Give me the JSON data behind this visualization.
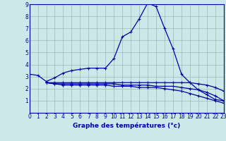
{
  "background_color": "#cce8e8",
  "grid_color": "#99bbbb",
  "line_color": "#0000aa",
  "xlabel": "Graphe des températures (°c)",
  "xlabel_color": "#0000aa",
  "xmin": 0,
  "xmax": 23,
  "ymin": 0,
  "ymax": 9,
  "line1_x": [
    0,
    1,
    2,
    3,
    4,
    5,
    6,
    7,
    8,
    9,
    10,
    11,
    12,
    13,
    14,
    15,
    16,
    17,
    18,
    19,
    20,
    21,
    22,
    23
  ],
  "line1_y": [
    3.2,
    3.1,
    2.6,
    2.9,
    3.3,
    3.5,
    3.6,
    3.7,
    3.7,
    3.7,
    4.5,
    6.3,
    6.7,
    7.8,
    9.1,
    8.8,
    7.0,
    5.3,
    3.2,
    2.5,
    1.9,
    1.5,
    1.1,
    1.0
  ],
  "line2_x": [
    2,
    3,
    4,
    5,
    6,
    7,
    8,
    9,
    10,
    11,
    12,
    13,
    14,
    15,
    16,
    17,
    18,
    19,
    20,
    21,
    22,
    23
  ],
  "line2_y": [
    2.5,
    2.5,
    2.5,
    2.5,
    2.5,
    2.5,
    2.5,
    2.5,
    2.5,
    2.5,
    2.5,
    2.5,
    2.5,
    2.5,
    2.5,
    2.5,
    2.5,
    2.5,
    2.4,
    2.3,
    2.1,
    1.8
  ],
  "line3_x": [
    2,
    3,
    4,
    5,
    6,
    7,
    8,
    9,
    10,
    11,
    12,
    13,
    14,
    15,
    16,
    17,
    18,
    19,
    20,
    21,
    22,
    23
  ],
  "line3_y": [
    2.5,
    2.4,
    2.4,
    2.4,
    2.4,
    2.4,
    2.4,
    2.4,
    2.4,
    2.3,
    2.3,
    2.3,
    2.3,
    2.2,
    2.2,
    2.2,
    2.1,
    2.0,
    1.9,
    1.7,
    1.4,
    1.0
  ],
  "line4_x": [
    2,
    3,
    4,
    5,
    6,
    7,
    8,
    9,
    10,
    11,
    12,
    13,
    14,
    15,
    16,
    17,
    18,
    19,
    20,
    21,
    22,
    23
  ],
  "line4_y": [
    2.5,
    2.4,
    2.3,
    2.3,
    2.3,
    2.3,
    2.3,
    2.3,
    2.2,
    2.2,
    2.2,
    2.1,
    2.1,
    2.1,
    2.0,
    1.9,
    1.8,
    1.6,
    1.4,
    1.2,
    1.0,
    0.8
  ],
  "figwidth": 3.2,
  "figheight": 2.0,
  "dpi": 100
}
